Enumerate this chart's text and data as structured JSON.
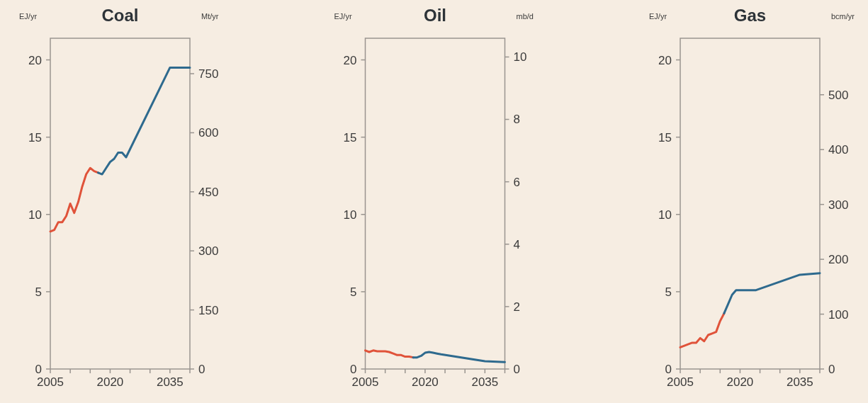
{
  "chart_data": [
    {
      "type": "line",
      "title": "Coal",
      "ylabel": "EJ/yr",
      "y2label": "Mt/yr",
      "xlim": [
        2005,
        2040
      ],
      "xticks": [
        2005,
        {
          "value": 2010,
          "label": null
        },
        {
          "value": 2015,
          "label": null
        },
        2020,
        {
          "value": 2025,
          "label": null
        },
        {
          "value": 2030,
          "label": null
        },
        2035,
        {
          "value": 2040,
          "label": null
        }
      ],
      "ylim": [
        0,
        21.4
      ],
      "yticks": [
        0,
        5,
        10,
        15,
        20
      ],
      "y2lim": [
        0,
        840
      ],
      "y2ticks": [
        0,
        150,
        300,
        450,
        600,
        750
      ],
      "series": [
        {
          "color": "#e0533a",
          "x": [
            2005,
            2006,
            2007,
            2008,
            2009,
            2010,
            2011,
            2012,
            2013,
            2014,
            2015,
            2016,
            2017
          ],
          "values": [
            8.9,
            9.0,
            9.5,
            9.5,
            9.9,
            10.7,
            10.1,
            10.8,
            11.8,
            12.6,
            13.0,
            12.8,
            12.7
          ]
        },
        {
          "color": "#2e6a8e",
          "x": [
            2017,
            2018,
            2019,
            2020,
            2021,
            2022,
            2023,
            2024,
            2035,
            2040
          ],
          "values": [
            12.7,
            12.6,
            13.0,
            13.4,
            13.6,
            14.0,
            14.0,
            13.7,
            19.5,
            19.5
          ]
        }
      ]
    },
    {
      "type": "line",
      "title": "Oil",
      "ylabel": "EJ/yr",
      "y2label": "mb/d",
      "xlim": [
        2005,
        2040
      ],
      "xticks": [
        2005,
        {
          "value": 2010,
          "label": null
        },
        {
          "value": 2015,
          "label": null
        },
        2020,
        {
          "value": 2025,
          "label": null
        },
        {
          "value": 2030,
          "label": null
        },
        2035,
        {
          "value": 2040,
          "label": null
        }
      ],
      "ylim": [
        0,
        21.4
      ],
      "yticks": [
        0,
        5,
        10,
        15,
        20
      ],
      "y2lim": [
        0,
        10.6
      ],
      "y2ticks": [
        0,
        2,
        4,
        6,
        8,
        10
      ],
      "series": [
        {
          "color": "#e0533a",
          "x": [
            2005,
            2006,
            2007,
            2008,
            2010,
            2011,
            2012,
            2013,
            2014,
            2015,
            2016,
            2017
          ],
          "values": [
            1.2,
            1.1,
            1.2,
            1.15,
            1.15,
            1.1,
            1.0,
            0.9,
            0.9,
            0.8,
            0.8,
            0.75
          ]
        },
        {
          "color": "#2e6a8e",
          "x": [
            2017,
            2018,
            2019,
            2020,
            2021,
            2022,
            2023,
            2024,
            2035,
            2040
          ],
          "values": [
            0.75,
            0.75,
            0.85,
            1.05,
            1.1,
            1.05,
            1.0,
            0.95,
            0.5,
            0.45
          ]
        }
      ]
    },
    {
      "type": "line",
      "title": "Gas",
      "ylabel": "EJ/yr",
      "y2label": "bcm/yr",
      "xlim": [
        2005,
        2040
      ],
      "xticks": [
        2005,
        {
          "value": 2010,
          "label": null
        },
        {
          "value": 2015,
          "label": null
        },
        2020,
        {
          "value": 2025,
          "label": null
        },
        {
          "value": 2030,
          "label": null
        },
        2035,
        {
          "value": 2040,
          "label": null
        }
      ],
      "ylim": [
        0,
        21.4
      ],
      "yticks": [
        0,
        5,
        10,
        15,
        20
      ],
      "y2lim": [
        0,
        603
      ],
      "y2ticks": [
        0,
        100,
        200,
        300,
        400,
        500
      ],
      "series": [
        {
          "color": "#e0533a",
          "x": [
            2005,
            2008,
            2009,
            2010,
            2011,
            2012,
            2013,
            2014,
            2015,
            2016
          ],
          "values": [
            1.4,
            1.7,
            1.7,
            2.0,
            1.8,
            2.2,
            2.3,
            2.4,
            3.1,
            3.6
          ]
        },
        {
          "color": "#2e6a8e",
          "x": [
            2016,
            2017,
            2018,
            2019,
            2020,
            2024,
            2035,
            2040
          ],
          "values": [
            3.6,
            4.2,
            4.8,
            5.1,
            5.1,
            5.1,
            6.1,
            6.2
          ]
        }
      ]
    }
  ]
}
